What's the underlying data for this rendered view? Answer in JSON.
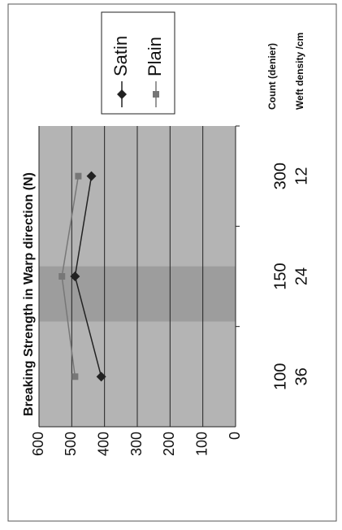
{
  "chart_data": {
    "type": "line",
    "title": "Breaking Strength in Warp direction (N)",
    "categories": [
      "100",
      "150",
      "300"
    ],
    "secondary_categories": [
      "36",
      "24",
      "12"
    ],
    "x_label": "Count (denier)",
    "secondary_x_label": "Weft density /cm",
    "series": [
      {
        "name": "Satin",
        "color": "#222222",
        "marker": "diamond",
        "values": [
          410,
          490,
          440
        ]
      },
      {
        "name": "Plain",
        "color": "#777777",
        "marker": "square",
        "values": [
          490,
          530,
          480
        ]
      }
    ],
    "ylim": [
      0,
      600
    ],
    "yticks": [
      0,
      100,
      200,
      300,
      400,
      500,
      600
    ],
    "grid": true,
    "legend": "right"
  }
}
